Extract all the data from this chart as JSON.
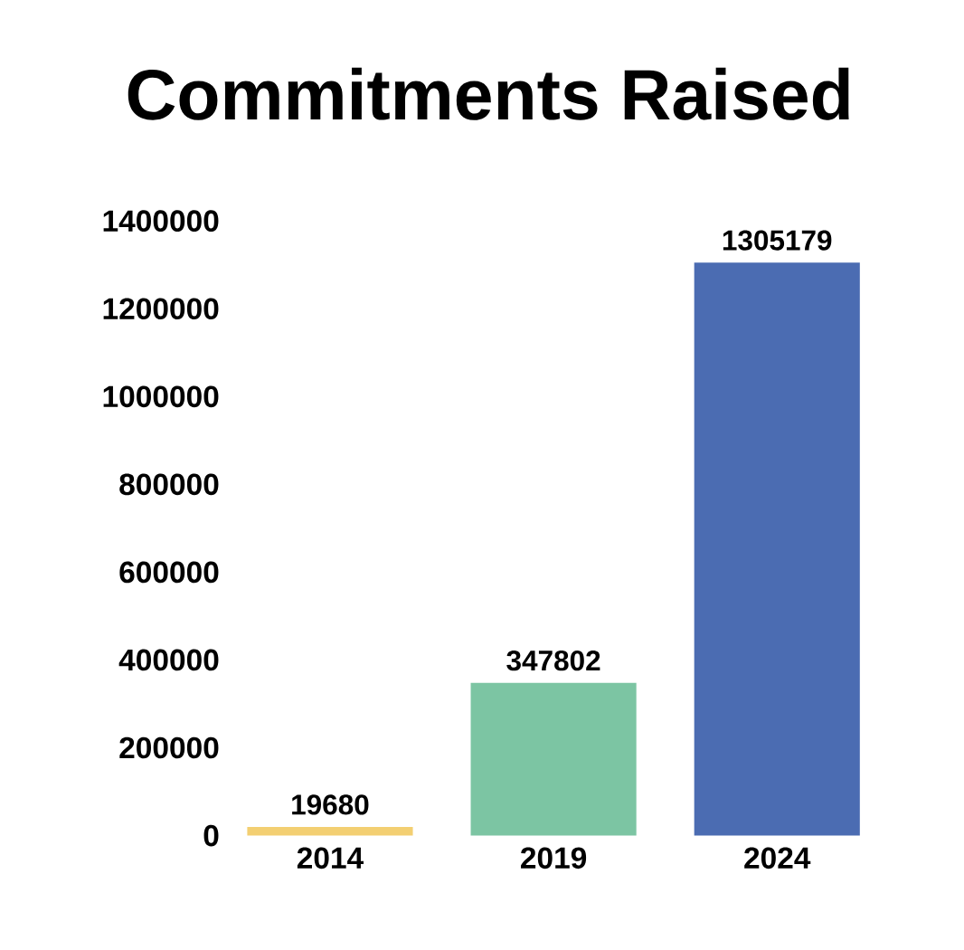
{
  "chart_data": {
    "type": "bar",
    "title": "Commitments Raised",
    "categories": [
      "2014",
      "2019",
      "2024"
    ],
    "values": [
      19680,
      347802,
      1305179
    ],
    "colors": [
      "#f3cf72",
      "#7cc5a3",
      "#4b6cb2"
    ],
    "ylim": [
      0,
      1400000
    ],
    "yticks": [
      0,
      200000,
      400000,
      600000,
      800000,
      1000000,
      1200000,
      1400000
    ],
    "data_labels": true
  }
}
